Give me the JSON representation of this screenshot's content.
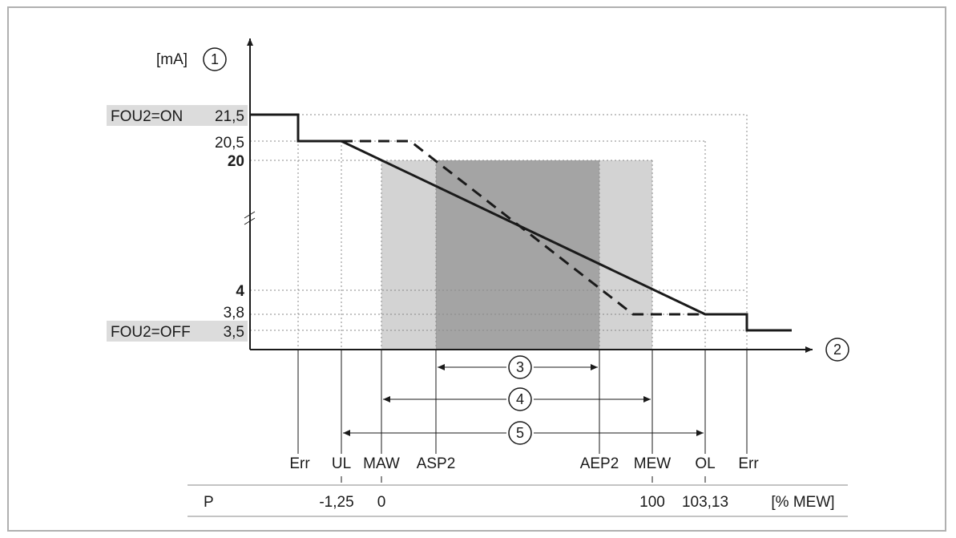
{
  "y_axis": {
    "unit": "[mA]",
    "marker": "1"
  },
  "x_axis": {
    "marker": "2"
  },
  "y_labels": {
    "v21_5": "21,5",
    "v20_5": "20,5",
    "v20": "20",
    "v4": "4",
    "v3_8": "3,8",
    "v3_5": "3,5"
  },
  "fou_on": "FOU2=ON",
  "fou_off": "FOU2=OFF",
  "x_labels": [
    "Err",
    "UL",
    "MAW",
    "ASP2",
    "AEP2",
    "MEW",
    "OL",
    "Err"
  ],
  "ranges": {
    "r3": "3",
    "r4": "4",
    "r5": "5"
  },
  "p_row": {
    "label": "P",
    "values": [
      "-1,25",
      "0",
      "100",
      "103,13"
    ],
    "unit": "[% MEW]"
  },
  "colors": {
    "light_region": "#d3d3d3",
    "dark_region": "#a4a4a4",
    "fou_bg": "#dcdcdc"
  }
}
